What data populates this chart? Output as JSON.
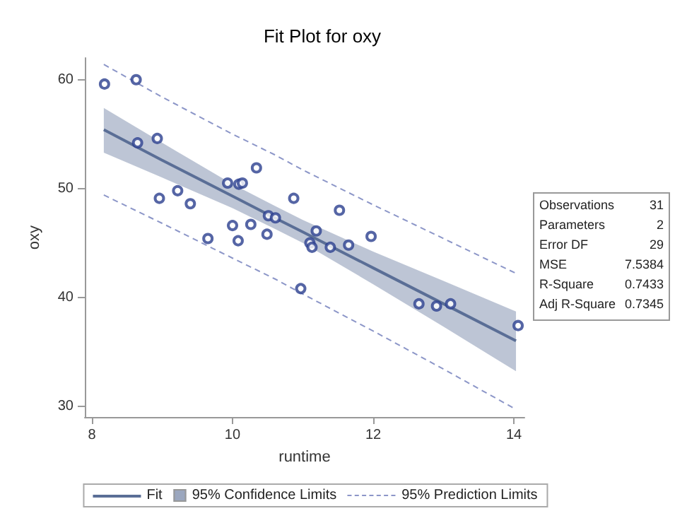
{
  "chart_data": {
    "type": "scatter",
    "title": "Fit Plot for oxy",
    "xlabel": "runtime",
    "ylabel": "oxy",
    "xlim": [
      7.9,
      14.15
    ],
    "ylim": [
      29,
      62
    ],
    "xticks": [
      8,
      10,
      12,
      14
    ],
    "yticks": [
      30,
      40,
      50,
      60
    ],
    "grid": false,
    "legend": "bottom",
    "marker": "circle",
    "annotations": [
      "95% Confidence Limits",
      "Observations",
      "31",
      "Parameters",
      "2",
      "Error DF",
      "29",
      "MSE",
      "7.5384",
      "R-Square",
      "0.7433",
      "Adj R-Square",
      "0.7345"
    ],
    "series": [
      {
        "type": "line",
        "name": "Fit",
        "color": "#5a6e96",
        "line_style": "solid",
        "marker": "none",
        "x": [
          8.17,
          9,
          10,
          10.6,
          11,
          12,
          13,
          14.03
        ],
        "values": [
          55.4,
          52.6,
          49.3,
          47.3,
          46.0,
          42.7,
          39.4,
          36.0
        ],
        "lower": [
          53.3,
          51.0,
          48.2,
          46.3,
          45.0,
          41.2,
          37.3,
          33.2
        ],
        "upper": [
          57.4,
          54.2,
          50.4,
          48.4,
          47.1,
          44.2,
          41.5,
          38.7
        ]
      },
      {
        "type": "line",
        "name": "95% Prediction Limits",
        "color": "#8c96c8",
        "line_style": "dashed",
        "marker": "none",
        "x": [
          8.17,
          9,
          10,
          10.6,
          11,
          12,
          13,
          14.03
        ],
        "values": [
          61.4,
          58.4,
          55.0,
          53.1,
          51.7,
          48.5,
          45.4,
          42.2
        ]
      },
      {
        "type": "line",
        "color": "#8c96c8",
        "line_style": "dashed",
        "marker": "none",
        "x": [
          8.17,
          9,
          10,
          10.6,
          11,
          12,
          13,
          14.03
        ],
        "values": [
          49.4,
          46.8,
          43.6,
          41.7,
          40.3,
          36.9,
          33.4,
          29.7
        ]
      },
      {
        "color": "#2b3f8f",
        "x": [
          8.18,
          8.63,
          8.65,
          8.93,
          8.96,
          9.22,
          9.4,
          9.65,
          9.93,
          10.0,
          10.08,
          10.09,
          10.14,
          10.26,
          10.34,
          10.49,
          10.51,
          10.61,
          10.87,
          10.97,
          11.1,
          11.13,
          11.19,
          11.39,
          11.52,
          11.65,
          11.97,
          12.65,
          12.9,
          13.1,
          14.06
        ],
        "values": [
          59.6,
          60.0,
          54.2,
          54.6,
          49.1,
          49.8,
          48.6,
          45.4,
          50.5,
          46.6,
          45.2,
          50.4,
          50.5,
          46.7,
          51.9,
          45.8,
          47.5,
          47.3,
          49.1,
          40.8,
          45.0,
          44.6,
          46.1,
          44.6,
          48.0,
          44.8,
          45.6,
          39.4,
          39.2,
          39.4,
          37.4
        ]
      }
    ]
  }
}
